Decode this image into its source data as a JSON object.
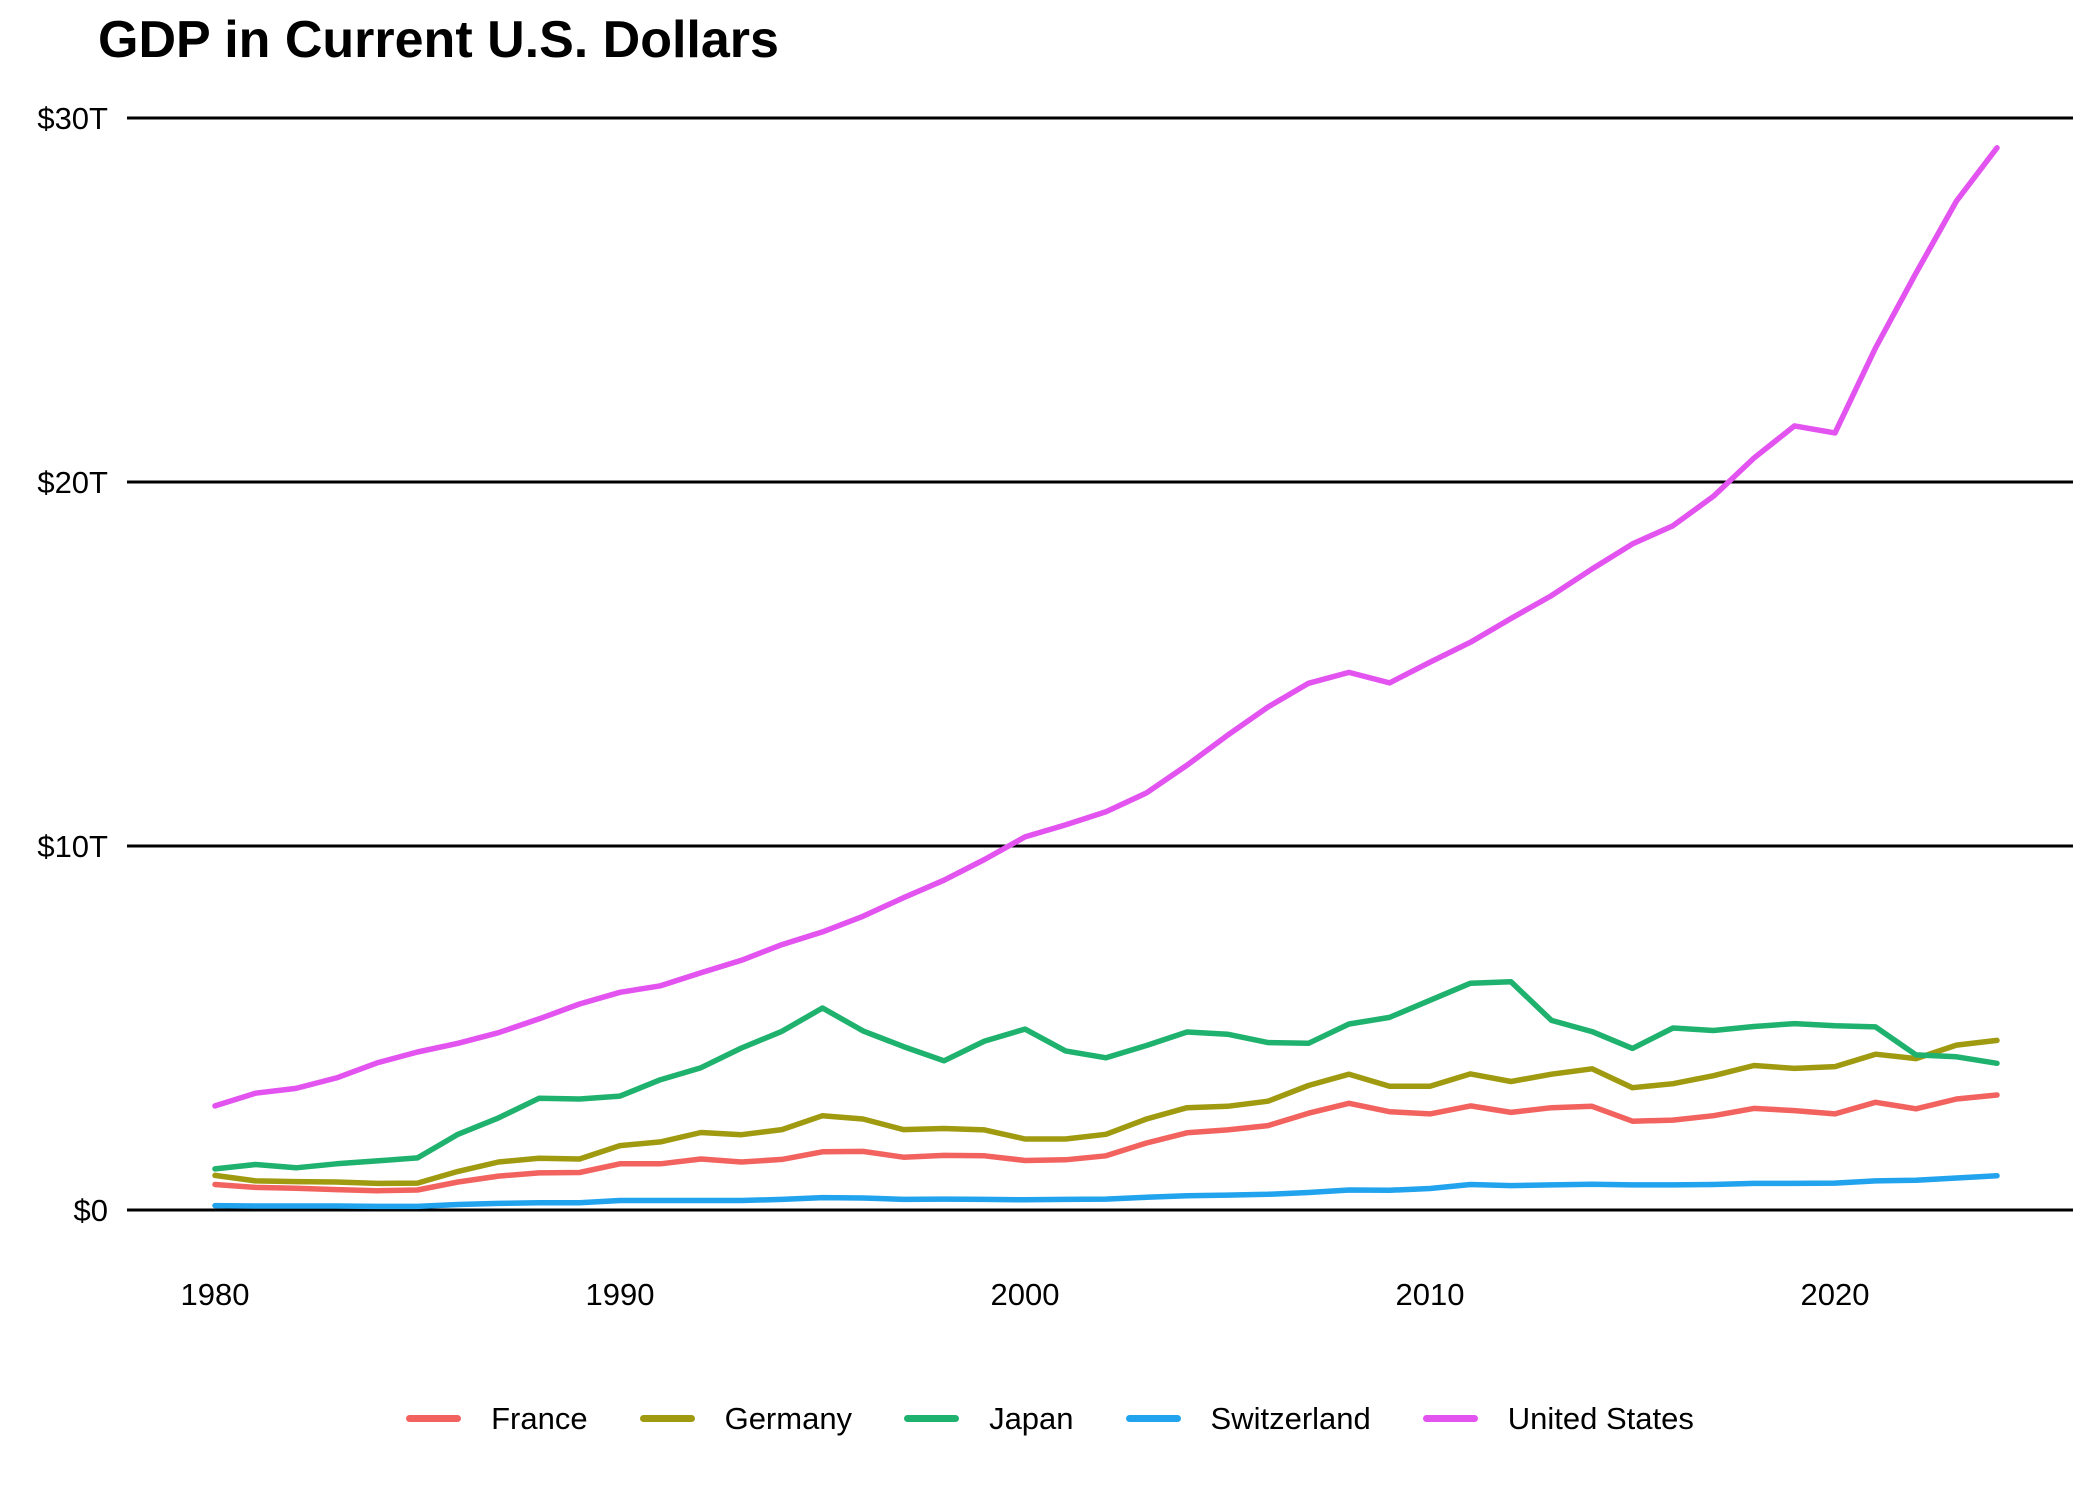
{
  "title": "GDP in Current U.S. Dollars",
  "chart_data": {
    "type": "line",
    "title": "GDP in Current U.S. Dollars",
    "xlabel": "",
    "ylabel": "",
    "units": "trillions of current U.S. dollars",
    "grid": "horizontal",
    "legend_position": "bottom",
    "ylim": [
      0,
      30
    ],
    "xlim": [
      1980,
      2024
    ],
    "x_ticks": [
      1980,
      1990,
      2000,
      2010,
      2020
    ],
    "y_ticks": [
      {
        "value": 0,
        "label": "$0"
      },
      {
        "value": 10,
        "label": "$10T"
      },
      {
        "value": 20,
        "label": "$20T"
      },
      {
        "value": 30,
        "label": "$30T"
      }
    ],
    "x": [
      1980,
      1981,
      1982,
      1983,
      1984,
      1985,
      1986,
      1987,
      1988,
      1989,
      1990,
      1991,
      1992,
      1993,
      1994,
      1995,
      1996,
      1997,
      1998,
      1999,
      2000,
      2001,
      2002,
      2003,
      2004,
      2005,
      2006,
      2007,
      2008,
      2009,
      2010,
      2011,
      2012,
      2013,
      2014,
      2015,
      2016,
      2017,
      2018,
      2019,
      2020,
      2021,
      2022,
      2023,
      2024
    ],
    "series": [
      {
        "name": "France",
        "color": "#F2635F",
        "values": [
          0.7,
          0.62,
          0.6,
          0.56,
          0.53,
          0.55,
          0.77,
          0.93,
          1.02,
          1.03,
          1.27,
          1.27,
          1.4,
          1.32,
          1.39,
          1.6,
          1.61,
          1.45,
          1.5,
          1.49,
          1.36,
          1.38,
          1.49,
          1.84,
          2.12,
          2.2,
          2.32,
          2.66,
          2.93,
          2.7,
          2.64,
          2.86,
          2.68,
          2.81,
          2.85,
          2.44,
          2.47,
          2.59,
          2.79,
          2.73,
          2.64,
          2.96,
          2.78,
          3.05,
          3.16
        ]
      },
      {
        "name": "Germany",
        "color": "#A09A10",
        "values": [
          0.95,
          0.8,
          0.78,
          0.77,
          0.73,
          0.74,
          1.06,
          1.32,
          1.42,
          1.4,
          1.77,
          1.87,
          2.13,
          2.07,
          2.21,
          2.59,
          2.5,
          2.21,
          2.24,
          2.2,
          1.95,
          1.95,
          2.08,
          2.5,
          2.81,
          2.85,
          2.99,
          3.42,
          3.73,
          3.4,
          3.4,
          3.74,
          3.53,
          3.73,
          3.88,
          3.36,
          3.47,
          3.69,
          3.97,
          3.89,
          3.94,
          4.28,
          4.16,
          4.53,
          4.66
        ]
      },
      {
        "name": "Japan",
        "color": "#1FB26E",
        "values": [
          1.13,
          1.25,
          1.16,
          1.27,
          1.35,
          1.43,
          2.08,
          2.53,
          3.07,
          3.05,
          3.13,
          3.58,
          3.91,
          4.45,
          4.91,
          5.55,
          4.92,
          4.49,
          4.1,
          4.64,
          4.97,
          4.37,
          4.18,
          4.52,
          4.89,
          4.83,
          4.6,
          4.58,
          5.11,
          5.29,
          5.76,
          6.23,
          6.27,
          5.21,
          4.9,
          4.44,
          5.0,
          4.93,
          5.04,
          5.12,
          5.06,
          5.03,
          4.26,
          4.21,
          4.03
        ]
      },
      {
        "name": "Switzerland",
        "color": "#21A3EE",
        "values": [
          0.12,
          0.11,
          0.11,
          0.11,
          0.1,
          0.1,
          0.15,
          0.18,
          0.2,
          0.2,
          0.26,
          0.26,
          0.26,
          0.26,
          0.29,
          0.34,
          0.33,
          0.29,
          0.3,
          0.29,
          0.28,
          0.29,
          0.3,
          0.35,
          0.39,
          0.41,
          0.43,
          0.48,
          0.55,
          0.54,
          0.59,
          0.7,
          0.67,
          0.69,
          0.71,
          0.69,
          0.69,
          0.7,
          0.73,
          0.73,
          0.74,
          0.8,
          0.82,
          0.88,
          0.94
        ]
      },
      {
        "name": "United States",
        "color": "#E253F0",
        "values": [
          2.86,
          3.21,
          3.34,
          3.63,
          4.04,
          4.34,
          4.58,
          4.87,
          5.25,
          5.66,
          5.98,
          6.16,
          6.52,
          6.86,
          7.29,
          7.64,
          8.07,
          8.58,
          9.06,
          9.63,
          10.25,
          10.58,
          10.94,
          11.46,
          12.22,
          13.04,
          13.82,
          14.47,
          14.77,
          14.48,
          15.05,
          15.6,
          16.25,
          16.88,
          17.61,
          18.3,
          18.8,
          19.61,
          20.66,
          21.54,
          21.35,
          23.68,
          25.74,
          27.72,
          29.18
        ]
      }
    ]
  }
}
